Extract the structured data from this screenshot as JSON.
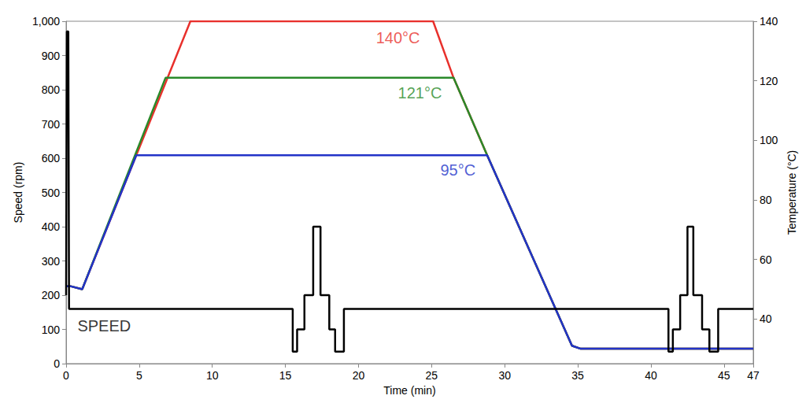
{
  "chart_data": {
    "type": "line",
    "x_label": "Time (min)",
    "y_label": "Speed (rpm)",
    "y2_label": "Temperature (°C)",
    "xlim": [
      0,
      47
    ],
    "xticks": [
      0,
      5,
      10,
      15,
      20,
      25,
      30,
      35,
      40,
      45
    ],
    "ylim": [
      0,
      1000
    ],
    "yticks": [
      0,
      100,
      200,
      300,
      400,
      500,
      600,
      700,
      800,
      900,
      1000
    ],
    "y2lim": [
      25,
      140
    ],
    "y2ticks": [
      40,
      60,
      80,
      100,
      120,
      140
    ],
    "grid": false,
    "series": [
      {
        "name": "140°C",
        "color": "#e8302c",
        "axis": "y2",
        "x": [
          0,
          0.3,
          1.1,
          8.5,
          25.1,
          26.5,
          28.8,
          34.6,
          35.2,
          47
        ],
        "values": [
          51,
          51,
          50,
          140,
          140,
          121,
          95,
          31,
          30,
          30
        ]
      },
      {
        "name": "121°C",
        "color": "#2a8a2a",
        "axis": "y2",
        "x": [
          0,
          0.3,
          1.1,
          6.8,
          26.5,
          28.8,
          34.6,
          35.2,
          47
        ],
        "values": [
          51,
          51,
          50,
          121,
          121,
          95,
          31,
          30,
          30
        ]
      },
      {
        "name": "95°C",
        "color": "#2233c8",
        "axis": "y2",
        "x": [
          0,
          0.3,
          1.1,
          4.8,
          28.8,
          34.6,
          35.2,
          47
        ],
        "values": [
          51,
          51,
          50,
          95,
          95,
          31,
          30,
          30
        ]
      },
      {
        "name": "SPEED",
        "color": "#000000",
        "x": [
          0,
          0.05,
          0.15,
          0.2,
          15.5,
          15.5,
          15.8,
          15.8,
          16.3,
          16.3,
          16.9,
          16.9,
          17.4,
          17.4,
          18.0,
          18.0,
          18.4,
          18.4,
          19.0,
          19.0,
          41.2,
          41.2,
          41.5,
          41.5,
          42.0,
          42.0,
          42.5,
          42.5,
          42.9,
          42.9,
          43.5,
          43.5,
          44.0,
          44.0,
          44.6,
          44.6,
          47
        ],
        "values": [
          200,
          970,
          970,
          160,
          160,
          35,
          35,
          100,
          100,
          200,
          200,
          400,
          400,
          200,
          200,
          100,
          100,
          35,
          35,
          160,
          160,
          35,
          35,
          100,
          100,
          200,
          200,
          400,
          400,
          200,
          200,
          100,
          100,
          35,
          35,
          160,
          160
        ]
      }
    ],
    "annotations": [
      {
        "text": "140°C",
        "x": 22.7,
        "y": 134.5,
        "axis": "y2",
        "color": "#e8302c"
      },
      {
        "text": "121°C",
        "x": 24.2,
        "y": 116,
        "axis": "y2",
        "color": "#2a8a2a"
      },
      {
        "text": "95°C",
        "x": 26.8,
        "y": 90,
        "axis": "y2",
        "color": "#2233c8"
      },
      {
        "text": "SPEED",
        "x": 2.6,
        "y": 110,
        "color": "#000000"
      }
    ]
  }
}
